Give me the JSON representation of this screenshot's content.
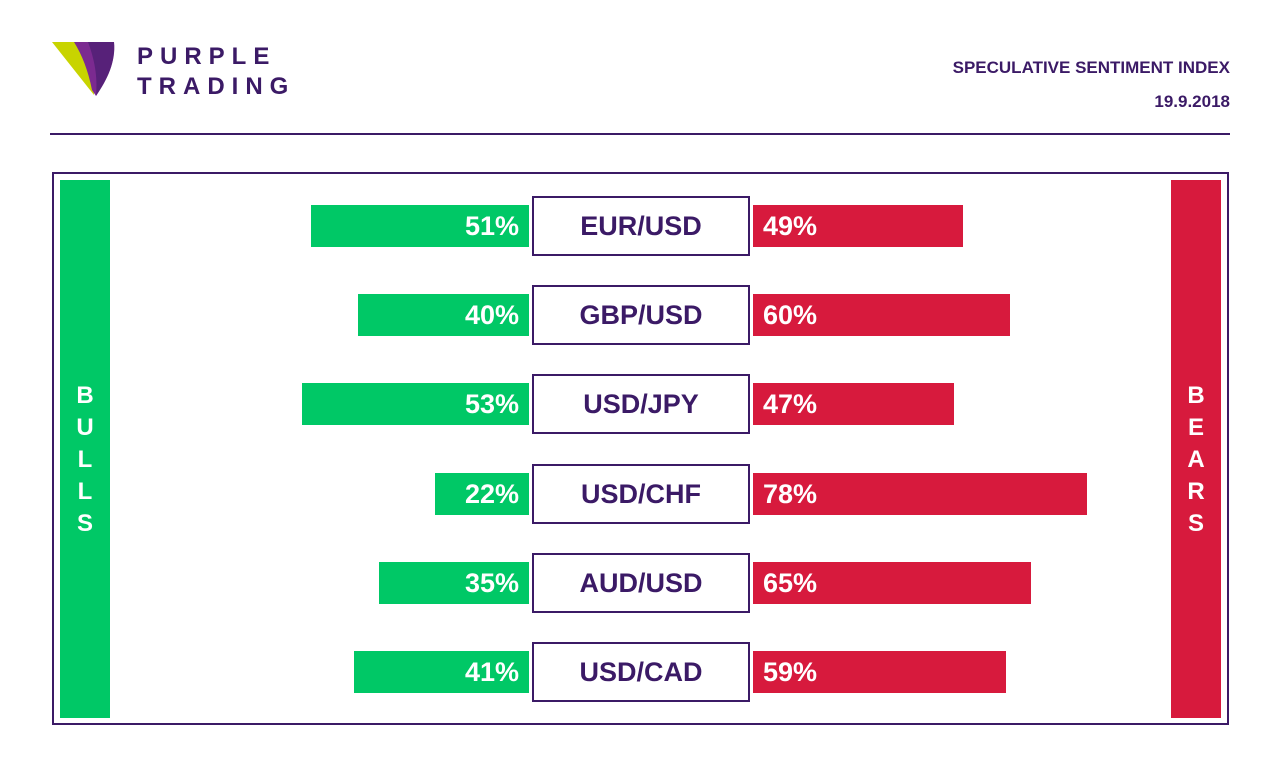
{
  "brand": {
    "line1": "PURPLE",
    "line2": "TRADING",
    "colors": {
      "purple": "#3b1a66",
      "lime": "#c8d400",
      "violet": "#7b2a90"
    }
  },
  "header": {
    "title": "SPECULATIVE SENTIMENT INDEX",
    "date": "19.9.2018"
  },
  "sides": {
    "bulls": "BULLS",
    "bears": "BEARS",
    "bull_color": "#00c866",
    "bear_color": "#d71a3d"
  },
  "chart_data": {
    "type": "bar",
    "categories": [
      "EUR/USD",
      "GBP/USD",
      "USD/JPY",
      "USD/CHF",
      "AUD/USD",
      "USD/CAD"
    ],
    "series": [
      {
        "name": "BULLS",
        "values": [
          51,
          40,
          53,
          22,
          35,
          41
        ],
        "labels": [
          "51%",
          "40%",
          "53%",
          "22%",
          "35%",
          "41%"
        ]
      },
      {
        "name": "BEARS",
        "values": [
          49,
          60,
          47,
          78,
          65,
          59
        ],
        "labels": [
          "49%",
          "60%",
          "47%",
          "78%",
          "65%",
          "59%"
        ]
      }
    ],
    "unit": "%",
    "ylim": [
      0,
      100
    ]
  }
}
